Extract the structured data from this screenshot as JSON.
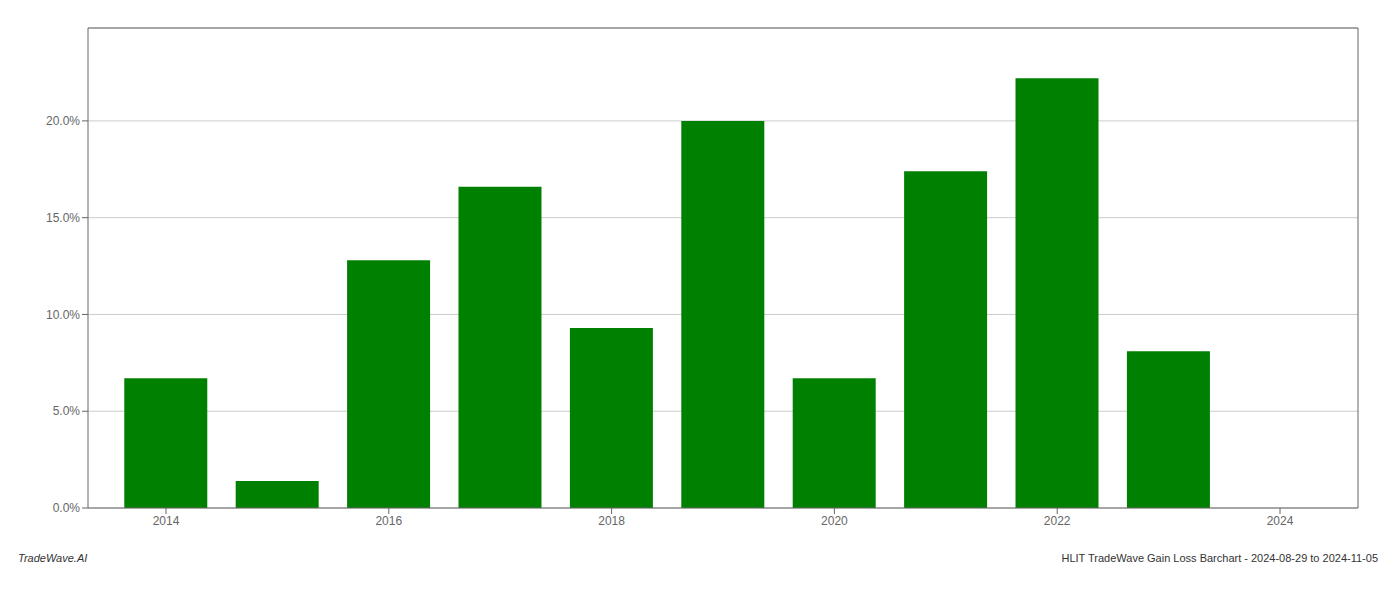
{
  "chart_data": {
    "type": "bar",
    "x": [
      2014,
      2015,
      2016,
      2017,
      2018,
      2019,
      2020,
      2021,
      2022,
      2023
    ],
    "values": [
      0.067,
      0.014,
      0.128,
      0.166,
      0.093,
      0.2,
      0.067,
      0.174,
      0.222,
      0.081
    ],
    "color": "#008000",
    "xlim": [
      2013.3,
      2024.7
    ],
    "xticks": [
      2014,
      2016,
      2018,
      2020,
      2022,
      2024
    ],
    "ylim": [
      0,
      0.248
    ],
    "yticks": [
      {
        "value": 0.0,
        "label": "0.0%"
      },
      {
        "value": 0.05,
        "label": "5.0%"
      },
      {
        "value": 0.1,
        "label": "10.0%"
      },
      {
        "value": 0.15,
        "label": "15.0%"
      },
      {
        "value": 0.2,
        "label": "20.0%"
      }
    ],
    "grid": "y",
    "annotations": [
      "TradeWave.AI",
      "HLIT TradeWave Gain Loss Barchart - 2024-08-29 to 2024-11-05"
    ]
  }
}
